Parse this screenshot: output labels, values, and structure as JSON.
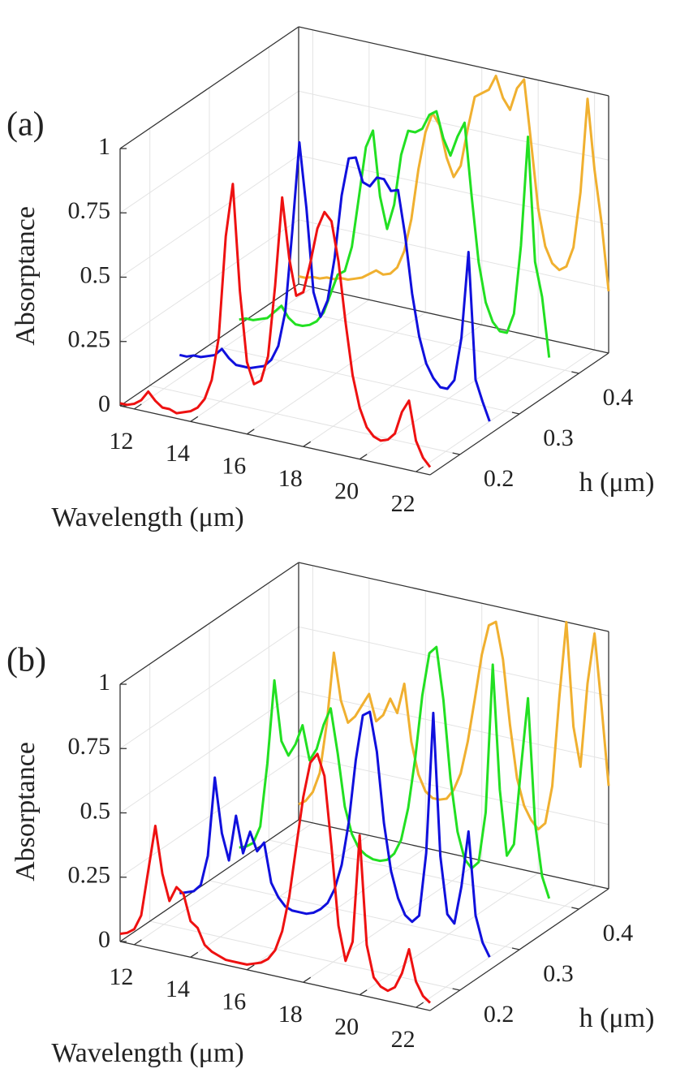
{
  "chart_data": [
    {
      "type": "waterfall3d",
      "panel_label": "(a)",
      "zlabel": "Absorptance",
      "xlabel": "Wavelength (μm)",
      "hlabel": "h (μm)",
      "xlim": [
        11.5,
        22.5
      ],
      "xticks": [
        12,
        14,
        16,
        18,
        20,
        22
      ],
      "hlim": [
        0.15,
        0.45
      ],
      "hticks": [
        0.2,
        0.3,
        0.4
      ],
      "zlim": [
        0,
        1
      ],
      "zticks": [
        0,
        0.25,
        0.5,
        0.75,
        1
      ],
      "grid": true,
      "x": [
        11.5,
        11.75,
        12,
        12.25,
        12.5,
        12.75,
        13,
        13.25,
        13.5,
        13.75,
        14,
        14.25,
        14.5,
        14.75,
        15,
        15.25,
        15.5,
        15.75,
        16,
        16.25,
        16.5,
        16.75,
        17,
        17.25,
        17.5,
        17.75,
        18,
        18.25,
        18.5,
        18.75,
        19,
        19.25,
        19.5,
        19.75,
        20,
        20.25,
        20.5,
        20.75,
        21,
        21.25,
        21.5,
        21.75,
        22,
        22.25,
        22.5
      ],
      "series": [
        {
          "h": 0.15,
          "color": "#ee1111",
          "values": [
            0.01,
            0.01,
            0.02,
            0.04,
            0.08,
            0.05,
            0.03,
            0.03,
            0.02,
            0.03,
            0.04,
            0.06,
            0.1,
            0.18,
            0.35,
            0.75,
            0.96,
            0.55,
            0.28,
            0.2,
            0.22,
            0.32,
            0.6,
            0.95,
            0.72,
            0.58,
            0.6,
            0.72,
            0.86,
            0.93,
            0.9,
            0.75,
            0.52,
            0.32,
            0.2,
            0.13,
            0.1,
            0.09,
            0.1,
            0.13,
            0.22,
            0.27,
            0.12,
            0.06,
            0.03
          ]
        },
        {
          "h": 0.25,
          "color": "#1010dd",
          "values": [
            0.04,
            0.04,
            0.05,
            0.05,
            0.06,
            0.07,
            0.1,
            0.07,
            0.05,
            0.05,
            0.05,
            0.06,
            0.07,
            0.1,
            0.16,
            0.3,
            0.62,
            0.97,
            0.72,
            0.4,
            0.31,
            0.38,
            0.55,
            0.8,
            0.95,
            0.96,
            0.87,
            0.86,
            0.9,
            0.9,
            0.86,
            0.87,
            0.7,
            0.48,
            0.32,
            0.22,
            0.17,
            0.14,
            0.14,
            0.18,
            0.35,
            0.69,
            0.2,
            0.12,
            0.05
          ]
        },
        {
          "h": 0.35,
          "color": "#22e022",
          "values": [
            0.02,
            0.03,
            0.03,
            0.04,
            0.05,
            0.08,
            0.11,
            0.07,
            0.05,
            0.05,
            0.06,
            0.08,
            0.12,
            0.2,
            0.28,
            0.3,
            0.4,
            0.6,
            0.8,
            0.87,
            0.62,
            0.5,
            0.6,
            0.8,
            0.9,
            0.9,
            0.92,
            0.98,
            1.0,
            0.9,
            0.84,
            0.92,
            0.98,
            0.7,
            0.45,
            0.3,
            0.23,
            0.2,
            0.2,
            0.28,
            0.55,
            0.98,
            0.5,
            0.37,
            0.14
          ]
        },
        {
          "h": 0.45,
          "color": "#f0b030",
          "values": [
            0.03,
            0.03,
            0.04,
            0.04,
            0.05,
            0.05,
            0.06,
            0.06,
            0.07,
            0.08,
            0.1,
            0.12,
            0.11,
            0.12,
            0.15,
            0.22,
            0.35,
            0.55,
            0.7,
            0.78,
            0.74,
            0.62,
            0.55,
            0.6,
            0.75,
            0.88,
            0.9,
            0.92,
            0.98,
            0.9,
            0.86,
            0.95,
            0.99,
            0.75,
            0.5,
            0.36,
            0.3,
            0.28,
            0.3,
            0.38,
            0.6,
            0.97,
            0.7,
            0.5,
            0.24
          ]
        }
      ]
    },
    {
      "type": "waterfall3d",
      "panel_label": "(b)",
      "zlabel": "Absorptance",
      "xlabel": "Wavelength (μm)",
      "hlabel": "h (μm)",
      "xlim": [
        11.5,
        22.5
      ],
      "xticks": [
        12,
        14,
        16,
        18,
        20,
        22
      ],
      "hlim": [
        0.15,
        0.45
      ],
      "hticks": [
        0.2,
        0.3,
        0.4
      ],
      "zlim": [
        0,
        1
      ],
      "zticks": [
        0,
        0.25,
        0.5,
        0.75,
        1
      ],
      "grid": true,
      "x": [
        11.5,
        11.75,
        12,
        12.25,
        12.5,
        12.75,
        13,
        13.25,
        13.5,
        13.75,
        14,
        14.25,
        14.5,
        14.75,
        15,
        15.25,
        15.5,
        15.75,
        16,
        16.25,
        16.5,
        16.75,
        17,
        17.25,
        17.5,
        17.75,
        18,
        18.25,
        18.5,
        18.75,
        19,
        19.25,
        19.5,
        19.75,
        20,
        20.25,
        20.5,
        20.75,
        21,
        21.25,
        21.5,
        21.75,
        22,
        22.25,
        22.5
      ],
      "series": [
        {
          "h": 0.15,
          "color": "#ee1111",
          "values": [
            0.03,
            0.04,
            0.06,
            0.12,
            0.3,
            0.48,
            0.3,
            0.2,
            0.26,
            0.24,
            0.14,
            0.12,
            0.06,
            0.04,
            0.03,
            0.02,
            0.02,
            0.02,
            0.02,
            0.03,
            0.04,
            0.06,
            0.1,
            0.18,
            0.32,
            0.52,
            0.72,
            0.86,
            0.9,
            0.82,
            0.55,
            0.25,
            0.12,
            0.2,
            0.62,
            0.2,
            0.08,
            0.05,
            0.04,
            0.06,
            0.12,
            0.22,
            0.1,
            0.05,
            0.03
          ]
        },
        {
          "h": 0.25,
          "color": "#1010dd",
          "values": [
            0.03,
            0.04,
            0.05,
            0.08,
            0.2,
            0.51,
            0.3,
            0.2,
            0.38,
            0.24,
            0.33,
            0.26,
            0.3,
            0.15,
            0.1,
            0.07,
            0.06,
            0.06,
            0.06,
            0.07,
            0.09,
            0.12,
            0.18,
            0.28,
            0.45,
            0.7,
            0.88,
            0.9,
            0.75,
            0.48,
            0.3,
            0.2,
            0.14,
            0.12,
            0.15,
            0.4,
            0.95,
            0.4,
            0.18,
            0.15,
            0.3,
            0.52,
            0.2,
            0.1,
            0.05
          ]
        },
        {
          "h": 0.35,
          "color": "#22e022",
          "values": [
            0.05,
            0.06,
            0.08,
            0.15,
            0.4,
            0.73,
            0.5,
            0.45,
            0.5,
            0.58,
            0.45,
            0.5,
            0.6,
            0.67,
            0.5,
            0.3,
            0.2,
            0.15,
            0.13,
            0.12,
            0.12,
            0.13,
            0.16,
            0.22,
            0.35,
            0.55,
            0.8,
            0.97,
            1.0,
            0.8,
            0.5,
            0.3,
            0.2,
            0.17,
            0.2,
            0.4,
            0.98,
            0.5,
            0.25,
            0.3,
            0.6,
            0.88,
            0.4,
            0.2,
            0.12
          ]
        },
        {
          "h": 0.45,
          "color": "#f0b030",
          "values": [
            0.06,
            0.08,
            0.12,
            0.2,
            0.4,
            0.68,
            0.5,
            0.42,
            0.45,
            0.5,
            0.55,
            0.45,
            0.48,
            0.55,
            0.5,
            0.62,
            0.4,
            0.28,
            0.22,
            0.2,
            0.2,
            0.21,
            0.25,
            0.32,
            0.45,
            0.62,
            0.8,
            0.92,
            0.94,
            0.8,
            0.55,
            0.35,
            0.25,
            0.2,
            0.17,
            0.2,
            0.35,
            0.7,
            1.0,
            0.6,
            0.45,
            0.78,
            0.98,
            0.7,
            0.4
          ]
        }
      ]
    }
  ]
}
